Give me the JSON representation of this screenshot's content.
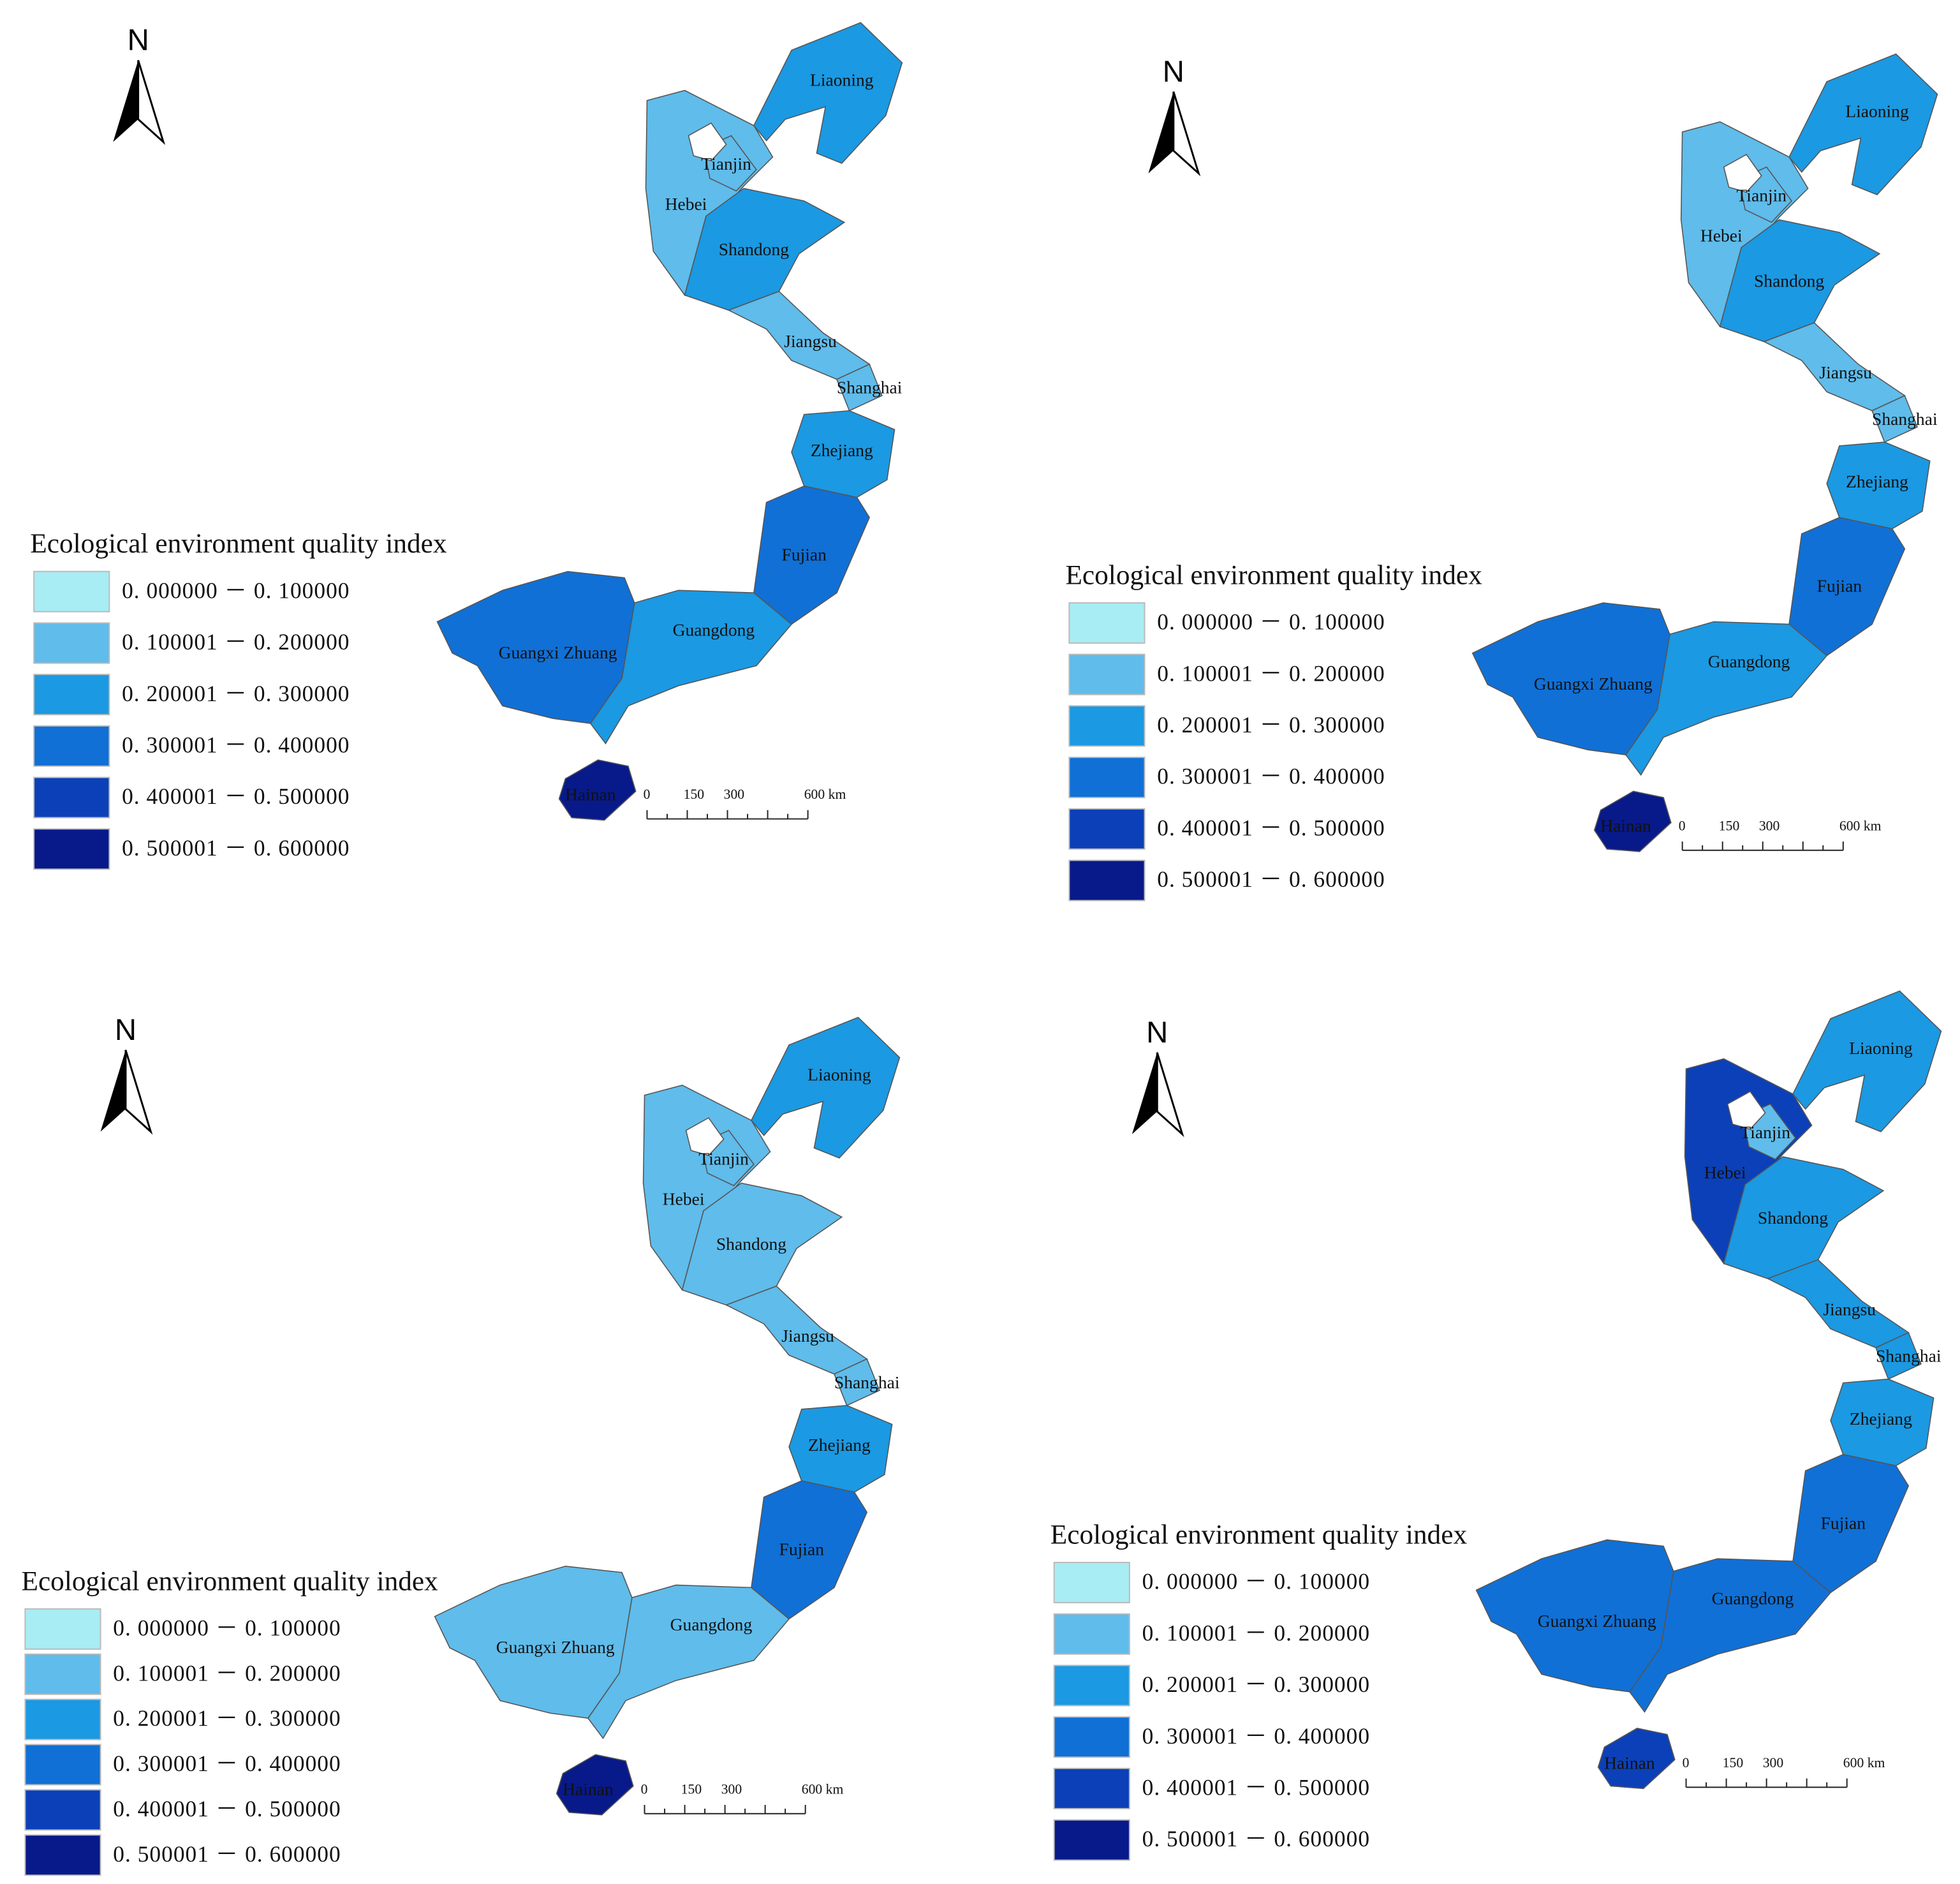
{
  "panels": [
    {
      "north": "N",
      "legend": {
        "title": "Ecological environment quality index",
        "classes": [
          {
            "label": "0. 000000 － 0. 100000",
            "color": "#a8ecf4"
          },
          {
            "label": "0. 100001 － 0. 200000",
            "color": "#5fbceb"
          },
          {
            "label": "0. 200001 － 0. 300000",
            "color": "#1b99e2"
          },
          {
            "label": "0. 300001 － 0. 400000",
            "color": "#1070d6"
          },
          {
            "label": "0. 400001 － 0. 500000",
            "color": "#0b40b8"
          },
          {
            "label": "0. 500001 － 0. 600000",
            "color": "#08198a"
          }
        ]
      },
      "provinces": [
        {
          "name": "Liaoning",
          "color": "#1b99e2"
        },
        {
          "name": "Hebei",
          "color": "#5fbceb"
        },
        {
          "name": "Tianjin",
          "color": "#5fbceb"
        },
        {
          "name": "Shandong",
          "color": "#1b99e2"
        },
        {
          "name": "Jiangsu",
          "color": "#5fbceb"
        },
        {
          "name": "Shanghai",
          "color": "#5fbceb"
        },
        {
          "name": "Zhejiang",
          "color": "#1b99e2"
        },
        {
          "name": "Fujian",
          "color": "#1070d6"
        },
        {
          "name": "Guangdong",
          "color": "#1b99e2"
        },
        {
          "name": "Guangxi Zhuang",
          "color": "#1070d6"
        },
        {
          "name": "Hainan",
          "color": "#08198a"
        }
      ],
      "scale": [
        "0",
        "150",
        "300",
        "600 km"
      ]
    },
    {
      "north": "N",
      "legend": {
        "title": "Ecological environment quality index",
        "classes": [
          {
            "label": "0. 000000 － 0. 100000",
            "color": "#a8ecf4"
          },
          {
            "label": "0. 100001 － 0. 200000",
            "color": "#5fbceb"
          },
          {
            "label": "0. 200001 － 0. 300000",
            "color": "#1b99e2"
          },
          {
            "label": "0. 300001 － 0. 400000",
            "color": "#1070d6"
          },
          {
            "label": "0. 400001 － 0. 500000",
            "color": "#0b40b8"
          },
          {
            "label": "0. 500001 － 0. 600000",
            "color": "#08198a"
          }
        ]
      },
      "provinces": [
        {
          "name": "Liaoning",
          "color": "#1b99e2"
        },
        {
          "name": "Hebei",
          "color": "#5fbceb"
        },
        {
          "name": "Tianjin",
          "color": "#5fbceb"
        },
        {
          "name": "Shandong",
          "color": "#1b99e2"
        },
        {
          "name": "Jiangsu",
          "color": "#5fbceb"
        },
        {
          "name": "Shanghai",
          "color": "#5fbceb"
        },
        {
          "name": "Zhejiang",
          "color": "#1b99e2"
        },
        {
          "name": "Fujian",
          "color": "#1070d6"
        },
        {
          "name": "Guangdong",
          "color": "#1b99e2"
        },
        {
          "name": "Guangxi Zhuang",
          "color": "#1070d6"
        },
        {
          "name": "Hainan",
          "color": "#08198a"
        }
      ],
      "scale": [
        "0",
        "150",
        "300",
        "600 km"
      ]
    },
    {
      "north": "N",
      "legend": {
        "title": "Ecological environment quality index",
        "classes": [
          {
            "label": "0. 000000 － 0. 100000",
            "color": "#a8ecf4"
          },
          {
            "label": "0. 100001 － 0. 200000",
            "color": "#5fbceb"
          },
          {
            "label": "0. 200001 － 0. 300000",
            "color": "#1b99e2"
          },
          {
            "label": "0. 300001 － 0. 400000",
            "color": "#1070d6"
          },
          {
            "label": "0. 400001 － 0. 500000",
            "color": "#0b40b8"
          },
          {
            "label": "0. 500001 － 0. 600000",
            "color": "#08198a"
          }
        ]
      },
      "provinces": [
        {
          "name": "Liaoning",
          "color": "#1b99e2"
        },
        {
          "name": "Hebei",
          "color": "#5fbceb"
        },
        {
          "name": "Tianjin",
          "color": "#5fbceb"
        },
        {
          "name": "Shandong",
          "color": "#5fbceb"
        },
        {
          "name": "Jiangsu",
          "color": "#5fbceb"
        },
        {
          "name": "Shanghai",
          "color": "#5fbceb"
        },
        {
          "name": "Zhejiang",
          "color": "#1b99e2"
        },
        {
          "name": "Fujian",
          "color": "#1070d6"
        },
        {
          "name": "Guangdong",
          "color": "#5fbceb"
        },
        {
          "name": "Guangxi Zhuang",
          "color": "#5fbceb"
        },
        {
          "name": "Hainan",
          "color": "#08198a"
        }
      ],
      "scale": [
        "0",
        "150",
        "300",
        "600 km"
      ]
    },
    {
      "north": "N",
      "legend": {
        "title": "Ecological environment quality index",
        "classes": [
          {
            "label": "0. 000000 － 0. 100000",
            "color": "#a8ecf4"
          },
          {
            "label": "0. 100001 － 0. 200000",
            "color": "#5fbceb"
          },
          {
            "label": "0. 200001 － 0. 300000",
            "color": "#1b99e2"
          },
          {
            "label": "0. 300001 － 0. 400000",
            "color": "#1070d6"
          },
          {
            "label": "0. 400001 － 0. 500000",
            "color": "#0b40b8"
          },
          {
            "label": "0. 500001 － 0. 600000",
            "color": "#08198a"
          }
        ]
      },
      "provinces": [
        {
          "name": "Liaoning",
          "color": "#1b99e2"
        },
        {
          "name": "Hebei",
          "color": "#0b40b8"
        },
        {
          "name": "Tianjin",
          "color": "#5fbceb"
        },
        {
          "name": "Shandong",
          "color": "#1b99e2"
        },
        {
          "name": "Jiangsu",
          "color": "#1b99e2"
        },
        {
          "name": "Shanghai",
          "color": "#1b99e2"
        },
        {
          "name": "Zhejiang",
          "color": "#1b99e2"
        },
        {
          "name": "Fujian",
          "color": "#1070d6"
        },
        {
          "name": "Guangdong",
          "color": "#1070d6"
        },
        {
          "name": "Guangxi Zhuang",
          "color": "#1070d6"
        },
        {
          "name": "Hainan",
          "color": "#0b40b8"
        }
      ],
      "scale": [
        "0",
        "150",
        "300",
        "600 km"
      ]
    }
  ]
}
